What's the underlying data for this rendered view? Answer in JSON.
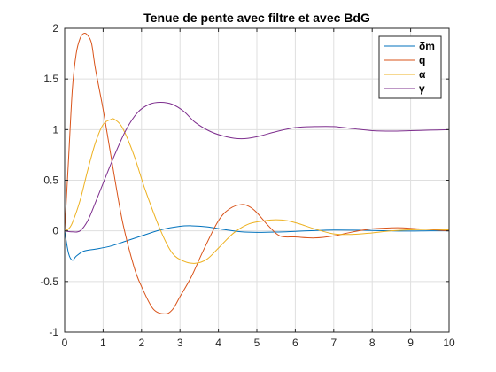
{
  "chart_data": {
    "type": "line",
    "title": "Tenue de pente avec filtre et avec BdG",
    "xlabel": "",
    "ylabel": "",
    "xlim": [
      0,
      10
    ],
    "ylim": [
      -1,
      2
    ],
    "xticks": [
      0,
      1,
      2,
      3,
      4,
      5,
      6,
      7,
      8,
      9,
      10
    ],
    "yticks": [
      -1,
      -0.5,
      0,
      0.5,
      1,
      1.5,
      2
    ],
    "xtick_labels": [
      "0",
      "1",
      "2",
      "3",
      "4",
      "5",
      "6",
      "7",
      "8",
      "9",
      "10"
    ],
    "ytick_labels": [
      "-1",
      "-0.5",
      "0",
      "0.5",
      "1",
      "1.5",
      "2"
    ],
    "grid": true,
    "legend_position": "top-right",
    "series": [
      {
        "name": "δm",
        "color": "#0072BD",
        "x": [
          0,
          0.1,
          0.2,
          0.3,
          0.5,
          0.8,
          1.2,
          1.6,
          2.0,
          2.5,
          3.0,
          3.3,
          3.7,
          4.2,
          4.6,
          5.0,
          5.5,
          6.0,
          6.5,
          7.0,
          7.5,
          8.0,
          8.5,
          9.0,
          9.5,
          10
        ],
        "y": [
          0,
          -0.22,
          -0.29,
          -0.25,
          -0.2,
          -0.18,
          -0.15,
          -0.1,
          -0.05,
          0.01,
          0.045,
          0.05,
          0.04,
          0.01,
          -0.01,
          -0.015,
          -0.012,
          -0.005,
          0.003,
          0.008,
          0.007,
          0.004,
          0.0,
          -0.002,
          0.0,
          0.0
        ]
      },
      {
        "name": "q",
        "color": "#D95319",
        "x": [
          0,
          0.1,
          0.2,
          0.3,
          0.4,
          0.5,
          0.6,
          0.7,
          0.8,
          1.0,
          1.2,
          1.5,
          1.8,
          2.0,
          2.3,
          2.6,
          2.8,
          3.0,
          3.3,
          3.6,
          4.0,
          4.3,
          4.6,
          4.8,
          5.0,
          5.3,
          5.6,
          6.0,
          6.5,
          7.0,
          7.5,
          8.0,
          8.5,
          8.8,
          9.2,
          9.6,
          10
        ],
        "y": [
          0,
          0.7,
          1.4,
          1.75,
          1.9,
          1.95,
          1.93,
          1.85,
          1.6,
          1.2,
          0.75,
          0.1,
          -0.35,
          -0.55,
          -0.77,
          -0.82,
          -0.78,
          -0.65,
          -0.45,
          -0.2,
          0.1,
          0.22,
          0.26,
          0.24,
          0.18,
          0.05,
          -0.05,
          -0.06,
          -0.07,
          -0.05,
          -0.01,
          0.02,
          0.03,
          0.03,
          0.02,
          0.01,
          0.0
        ]
      },
      {
        "name": "α",
        "color": "#EDB120",
        "x": [
          0,
          0.1,
          0.2,
          0.4,
          0.6,
          0.8,
          1.0,
          1.2,
          1.3,
          1.5,
          1.8,
          2.1,
          2.5,
          2.8,
          3.1,
          3.4,
          3.7,
          4.0,
          4.4,
          4.8,
          5.2,
          5.5,
          5.8,
          6.1,
          6.5,
          7.0,
          7.5,
          8.0,
          8.5,
          9.0,
          9.5,
          10
        ],
        "y": [
          0,
          0.02,
          0.08,
          0.3,
          0.6,
          0.87,
          1.05,
          1.1,
          1.1,
          1.02,
          0.75,
          0.4,
          0.0,
          -0.22,
          -0.3,
          -0.32,
          -0.28,
          -0.17,
          -0.02,
          0.07,
          0.1,
          0.11,
          0.1,
          0.07,
          0.02,
          -0.03,
          -0.035,
          -0.02,
          0.0,
          0.01,
          0.015,
          0.01
        ]
      },
      {
        "name": "γ",
        "color": "#7E2F8E",
        "x": [
          0,
          0.2,
          0.4,
          0.6,
          0.8,
          1.0,
          1.3,
          1.6,
          1.9,
          2.2,
          2.5,
          2.8,
          3.1,
          3.4,
          3.8,
          4.2,
          4.6,
          5.0,
          5.5,
          6.0,
          6.5,
          7.0,
          7.5,
          8.0,
          8.5,
          9.0,
          9.5,
          10
        ],
        "y": [
          0,
          -0.01,
          0.0,
          0.1,
          0.28,
          0.47,
          0.75,
          1.0,
          1.17,
          1.25,
          1.27,
          1.25,
          1.18,
          1.07,
          0.98,
          0.93,
          0.91,
          0.93,
          0.98,
          1.02,
          1.03,
          1.03,
          1.01,
          0.99,
          0.985,
          0.99,
          0.995,
          1.0
        ]
      }
    ]
  }
}
